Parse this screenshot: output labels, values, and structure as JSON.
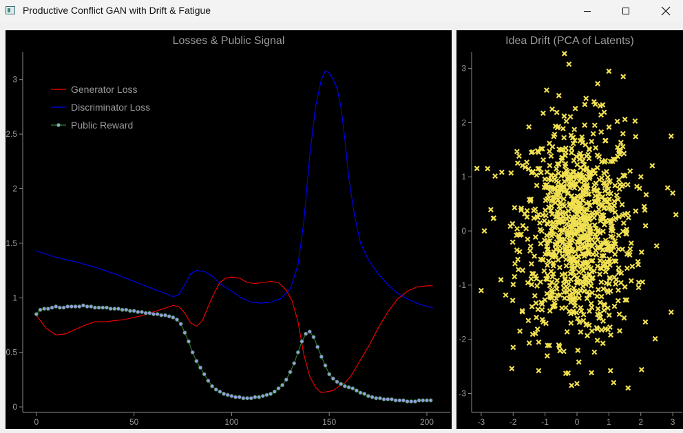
{
  "window": {
    "title": "Productive Conflict GAN with Drift & Fatigue",
    "controls": [
      "minimize",
      "maximize",
      "close"
    ]
  },
  "left_plot": {
    "title": "Losses & Public Signal"
  },
  "right_plot": {
    "title": "Idea Drift (PCA of Latents)"
  },
  "chart_data": [
    {
      "type": "line",
      "title": "Losses & Public Signal",
      "xlim": [
        -7,
        212
      ],
      "ylim": [
        -0.05,
        3.25
      ],
      "xticks": [
        0,
        50,
        100,
        150,
        200
      ],
      "yticks": [
        0,
        0.5,
        1,
        1.5,
        2,
        2.5,
        3
      ],
      "ytick_labels": [
        "0",
        "0.5",
        "1",
        "1.5",
        "2",
        "2.5",
        "3"
      ],
      "legend_position": "top-left",
      "series": [
        {
          "name": "Generator Loss",
          "color": "#ff0000",
          "x": [
            0,
            5,
            10,
            15,
            20,
            25,
            30,
            35,
            40,
            45,
            50,
            55,
            60,
            65,
            70,
            73,
            76,
            79,
            82,
            85,
            88,
            91,
            94,
            97,
            100,
            104,
            108,
            112,
            116,
            120,
            124,
            128,
            131,
            134,
            137,
            140,
            143,
            146,
            149,
            152,
            155,
            158,
            161,
            165,
            170,
            175,
            180,
            185,
            190,
            195,
            200,
            203
          ],
          "y": [
            0.84,
            0.72,
            0.66,
            0.67,
            0.71,
            0.75,
            0.78,
            0.78,
            0.79,
            0.8,
            0.82,
            0.84,
            0.87,
            0.9,
            0.93,
            0.92,
            0.86,
            0.77,
            0.74,
            0.79,
            0.92,
            1.04,
            1.14,
            1.18,
            1.19,
            1.18,
            1.14,
            1.13,
            1.14,
            1.15,
            1.14,
            1.07,
            0.97,
            0.78,
            0.48,
            0.28,
            0.18,
            0.13,
            0.14,
            0.15,
            0.19,
            0.22,
            0.28,
            0.4,
            0.55,
            0.72,
            0.87,
            0.99,
            1.06,
            1.1,
            1.11,
            1.11
          ]
        },
        {
          "name": "Discriminator Loss",
          "color": "#0000ff",
          "x": [
            0,
            10,
            20,
            30,
            40,
            50,
            60,
            66,
            70,
            73,
            76,
            79,
            82,
            86,
            90,
            94,
            100,
            105,
            110,
            115,
            120,
            125,
            130,
            134,
            137,
            140,
            143,
            146,
            148,
            150,
            152,
            154,
            156,
            158,
            160,
            163,
            166,
            170,
            175,
            180,
            185,
            190,
            195,
            200,
            203
          ],
          "y": [
            1.43,
            1.37,
            1.33,
            1.28,
            1.22,
            1.15,
            1.08,
            1.04,
            1.01,
            1.03,
            1.12,
            1.22,
            1.25,
            1.24,
            1.2,
            1.13,
            1.06,
            1.0,
            0.96,
            0.95,
            0.96,
            0.99,
            1.08,
            1.3,
            1.7,
            2.3,
            2.75,
            3.0,
            3.08,
            3.06,
            3.0,
            2.92,
            2.75,
            2.45,
            2.1,
            1.75,
            1.5,
            1.35,
            1.22,
            1.12,
            1.04,
            0.99,
            0.95,
            0.92,
            0.91
          ]
        },
        {
          "name": "Public Reward",
          "color": "#2f7f2f",
          "marker_color": "#9a9ae6",
          "x": [
            0,
            2,
            4,
            6,
            8,
            10,
            12,
            14,
            16,
            18,
            20,
            22,
            24,
            26,
            28,
            30,
            32,
            34,
            36,
            38,
            40,
            42,
            44,
            46,
            48,
            50,
            52,
            54,
            56,
            58,
            60,
            62,
            64,
            66,
            68,
            70,
            72,
            74,
            76,
            78,
            80,
            82,
            84,
            86,
            88,
            90,
            92,
            94,
            96,
            98,
            100,
            102,
            104,
            106,
            108,
            110,
            112,
            114,
            116,
            118,
            120,
            122,
            124,
            126,
            128,
            130,
            132,
            134,
            136,
            138,
            140,
            142,
            144,
            146,
            148,
            150,
            152,
            154,
            156,
            158,
            160,
            162,
            164,
            166,
            168,
            170,
            172,
            174,
            176,
            178,
            180,
            182,
            184,
            186,
            188,
            190,
            192,
            194,
            196,
            198,
            200,
            202
          ],
          "y": [
            0.85,
            0.89,
            0.9,
            0.9,
            0.91,
            0.92,
            0.91,
            0.91,
            0.92,
            0.92,
            0.92,
            0.92,
            0.93,
            0.92,
            0.92,
            0.91,
            0.91,
            0.91,
            0.91,
            0.9,
            0.9,
            0.9,
            0.89,
            0.89,
            0.88,
            0.88,
            0.87,
            0.87,
            0.86,
            0.86,
            0.85,
            0.85,
            0.84,
            0.84,
            0.83,
            0.82,
            0.8,
            0.76,
            0.68,
            0.6,
            0.5,
            0.42,
            0.36,
            0.3,
            0.24,
            0.19,
            0.16,
            0.14,
            0.12,
            0.11,
            0.1,
            0.09,
            0.09,
            0.08,
            0.08,
            0.08,
            0.09,
            0.09,
            0.1,
            0.11,
            0.12,
            0.14,
            0.17,
            0.2,
            0.25,
            0.32,
            0.4,
            0.5,
            0.6,
            0.67,
            0.69,
            0.64,
            0.55,
            0.46,
            0.38,
            0.3,
            0.26,
            0.23,
            0.21,
            0.19,
            0.18,
            0.17,
            0.15,
            0.13,
            0.12,
            0.1,
            0.09,
            0.08,
            0.08,
            0.07,
            0.07,
            0.07,
            0.06,
            0.06,
            0.06,
            0.05,
            0.05,
            0.05,
            0.06,
            0.06,
            0.06,
            0.06
          ]
        }
      ]
    },
    {
      "type": "scatter",
      "title": "Idea Drift (PCA of Latents)",
      "xlim": [
        -3.3,
        3.3
      ],
      "ylim": [
        -3.35,
        3.3
      ],
      "xticks": [
        -3,
        -2,
        -1,
        0,
        1,
        2,
        3
      ],
      "yticks": [
        -3,
        -2,
        -1,
        0,
        1,
        2,
        3
      ],
      "marker": "x",
      "color": "#f0e050",
      "point_count": 1000,
      "distribution": "bivariate normal, mean (0, 0), std x 0.9, std y 1.0",
      "outliers": [
        {
          "x": -0.25,
          "y": 3.08
        },
        {
          "x": 1.0,
          "y": 2.95
        },
        {
          "x": 1.45,
          "y": 2.85
        },
        {
          "x": 0.65,
          "y": 2.72
        },
        {
          "x": -0.95,
          "y": 2.6
        },
        {
          "x": 2.95,
          "y": 1.75
        },
        {
          "x": 3.0,
          "y": 0.7
        },
        {
          "x": 3.1,
          "y": 0.3
        },
        {
          "x": -2.9,
          "y": 0.0
        },
        {
          "x": -2.8,
          "y": 1.15
        },
        {
          "x": -3.0,
          "y": -1.1
        },
        {
          "x": 2.95,
          "y": -1.5
        },
        {
          "x": -1.2,
          "y": -2.58
        },
        {
          "x": 1.05,
          "y": -2.58
        },
        {
          "x": -2.0,
          "y": -2.15
        },
        {
          "x": 1.6,
          "y": -2.9
        },
        {
          "x": 1.15,
          "y": -2.8
        },
        {
          "x": 0.0,
          "y": -2.82
        }
      ]
    }
  ]
}
